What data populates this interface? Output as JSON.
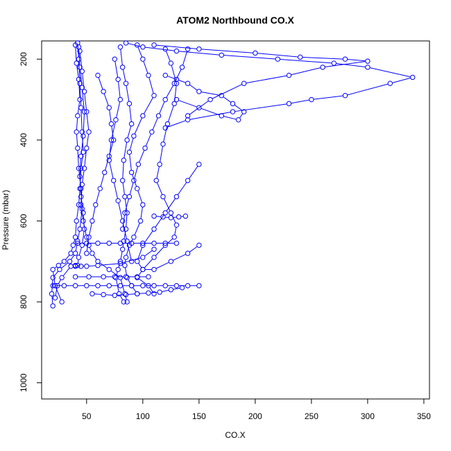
{
  "chart_data": {
    "type": "scatter",
    "title": "ATOM2 Northbound CO.X",
    "xlabel": "CO.X",
    "ylabel": "Pressure (mbar)",
    "xlim": [
      10,
      355
    ],
    "ylim": [
      1040,
      155
    ],
    "y_reversed": true,
    "x_ticks": [
      50,
      100,
      150,
      200,
      250,
      300,
      350
    ],
    "y_ticks": [
      200,
      400,
      600,
      800,
      1000
    ],
    "grid": false,
    "legend": "none",
    "color": "#0000ff",
    "marker": "open-circle",
    "series": [
      {
        "x": [
          42,
          43,
          44,
          45,
          46,
          47,
          45,
          44,
          43,
          41,
          40,
          38,
          36,
          30,
          25,
          20,
          22,
          28
        ],
        "y": [
          160,
          200,
          260,
          320,
          380,
          430,
          470,
          520,
          560,
          600,
          640,
          660,
          680,
          700,
          710,
          720,
          760,
          800
        ]
      },
      {
        "x": [
          40,
          41,
          43,
          44,
          42,
          41,
          42,
          43,
          45,
          46,
          44,
          42,
          40,
          35,
          26,
          20,
          19,
          20
        ],
        "y": [
          165,
          210,
          250,
          300,
          340,
          380,
          420,
          470,
          520,
          570,
          620,
          650,
          680,
          700,
          720,
          740,
          780,
          810
        ]
      },
      {
        "x": [
          43,
          44,
          46,
          48,
          47,
          45,
          44,
          45,
          47,
          48,
          46,
          43,
          42,
          40,
          36,
          28,
          24,
          22
        ],
        "y": [
          170,
          220,
          270,
          330,
          390,
          440,
          490,
          540,
          580,
          620,
          660,
          690,
          710,
          712,
          712,
          740,
          760,
          790
        ]
      },
      {
        "x": [
          44,
          46,
          48,
          50,
          52,
          50,
          48,
          46,
          45,
          47,
          50,
          52,
          55,
          60,
          70,
          80,
          84,
          86
        ],
        "y": [
          180,
          230,
          280,
          330,
          380,
          420,
          470,
          510,
          560,
          600,
          640,
          660,
          680,
          700,
          720,
          740,
          780,
          800
        ]
      },
      {
        "x": [
          80,
          82,
          85,
          88,
          90,
          86,
          83,
          82,
          84,
          86,
          85,
          83,
          82,
          80,
          78,
          76,
          79,
          83
        ],
        "y": [
          170,
          220,
          260,
          310,
          360,
          400,
          450,
          500,
          540,
          580,
          620,
          650,
          670,
          700,
          720,
          740,
          780,
          800
        ]
      },
      {
        "x": [
          95,
          100,
          105,
          110,
          100,
          92,
          88,
          90,
          95,
          100,
          98,
          92,
          88,
          85,
          84,
          86,
          90,
          95
        ],
        "y": [
          165,
          200,
          240,
          290,
          340,
          390,
          430,
          480,
          520,
          560,
          600,
          640,
          660,
          690,
          710,
          740,
          760,
          780
        ]
      },
      {
        "x": [
          120,
          125,
          130,
          128,
          122,
          118,
          115,
          112,
          118,
          125,
          130,
          128,
          120,
          110,
          100,
          95,
          105,
          110
        ],
        "y": [
          175,
          210,
          260,
          310,
          360,
          410,
          460,
          500,
          540,
          580,
          610,
          640,
          660,
          690,
          720,
          740,
          760,
          780
        ]
      },
      {
        "x": [
          85,
          100,
          130,
          170,
          220,
          270,
          300,
          340,
          320,
          280,
          250,
          230,
          180,
          140,
          120
        ],
        "y": [
          160,
          170,
          180,
          190,
          200,
          210,
          220,
          245,
          260,
          290,
          300,
          310,
          330,
          350,
          370
        ]
      },
      {
        "x": [
          110,
          150,
          200,
          240,
          280,
          300,
          260,
          230,
          190,
          160,
          140
        ],
        "y": [
          165,
          175,
          185,
          195,
          200,
          205,
          220,
          240,
          260,
          300,
          340
        ]
      },
      {
        "x": [
          130,
          150,
          170,
          185,
          190,
          180,
          170,
          150,
          140,
          130,
          120
        ],
        "y": [
          300,
          320,
          340,
          350,
          330,
          310,
          290,
          280,
          260,
          250,
          240
        ]
      },
      {
        "x": [
          42,
          50,
          60,
          70,
          80,
          90,
          100,
          110,
          120,
          130
        ],
        "y": [
          655,
          655,
          655,
          655,
          655,
          655,
          655,
          655,
          655,
          655
        ]
      },
      {
        "x": [
          40,
          52,
          65,
          75,
          85,
          95,
          105
        ],
        "y": [
          738,
          738,
          738,
          738,
          738,
          738,
          738
        ]
      },
      {
        "x": [
          20,
          30,
          40,
          50,
          60,
          70,
          80,
          90,
          100,
          110,
          120,
          130,
          140,
          150
        ],
        "y": [
          760,
          760,
          760,
          760,
          760,
          760,
          760,
          760,
          760,
          760,
          760,
          760,
          760,
          760
        ]
      },
      {
        "x": [
          55,
          65,
          75,
          85,
          95,
          105,
          115,
          125,
          135
        ],
        "y": [
          780,
          782,
          784,
          782,
          780,
          778,
          776,
          770,
          765
        ]
      },
      {
        "x": [
          110,
          118,
          125,
          132,
          138
        ],
        "y": [
          588,
          590,
          592,
          590,
          588
        ]
      },
      {
        "x": [
          40,
          45,
          50,
          60,
          80,
          100,
          110
        ],
        "y": [
          710,
          712,
          712,
          710,
          705,
          690,
          670
        ]
      },
      {
        "x": [
          150,
          140,
          130,
          120,
          110,
          100,
          95,
          100,
          110,
          125,
          140,
          150
        ],
        "y": [
          460,
          500,
          540,
          580,
          620,
          660,
          700,
          720,
          720,
          700,
          680,
          660
        ]
      },
      {
        "x": [
          140,
          135,
          128,
          120,
          114,
          108,
          102,
          96,
          92,
          88,
          84,
          82
        ],
        "y": [
          175,
          220,
          260,
          300,
          340,
          380,
          420,
          460,
          500,
          540,
          580,
          620
        ]
      },
      {
        "x": [
          60,
          65,
          70,
          72,
          74,
          70,
          66,
          62,
          58,
          55,
          52,
          50
        ],
        "y": [
          240,
          280,
          320,
          360,
          400,
          440,
          480,
          520,
          560,
          600,
          640,
          680
        ]
      },
      {
        "x": [
          75,
          78,
          80,
          76,
          72,
          70,
          74,
          78,
          82,
          86,
          90
        ],
        "y": [
          200,
          250,
          300,
          350,
          400,
          450,
          500,
          550,
          600,
          650,
          700
        ]
      }
    ]
  }
}
